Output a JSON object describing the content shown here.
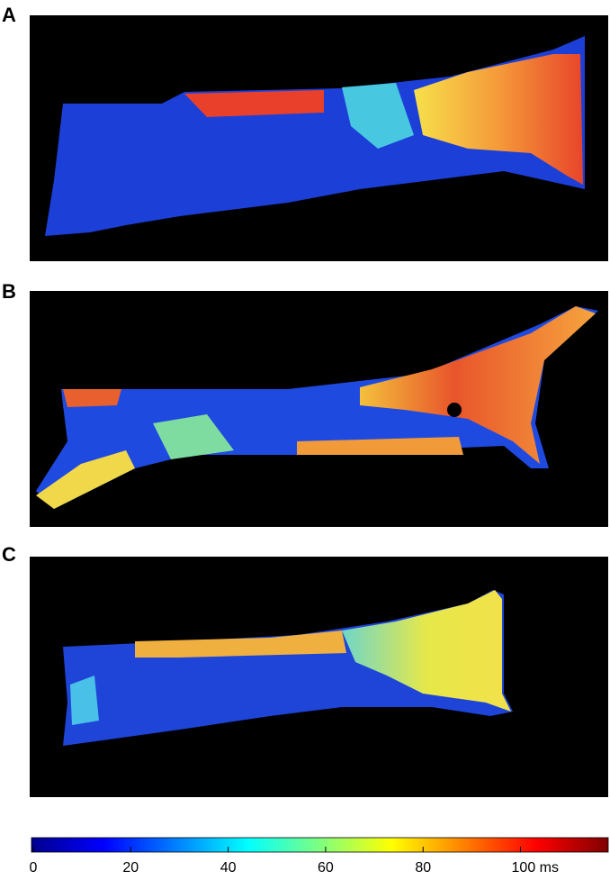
{
  "chart_data": {
    "type": "heatmap",
    "panels": [
      {
        "label": "A"
      },
      {
        "label": "B"
      },
      {
        "label": "C"
      }
    ],
    "colorbar": {
      "clim": [
        0,
        118
      ],
      "ticks": [
        0,
        20,
        40,
        60,
        80,
        {
          "value": 100,
          "label": "100 ms"
        }
      ]
    }
  }
}
